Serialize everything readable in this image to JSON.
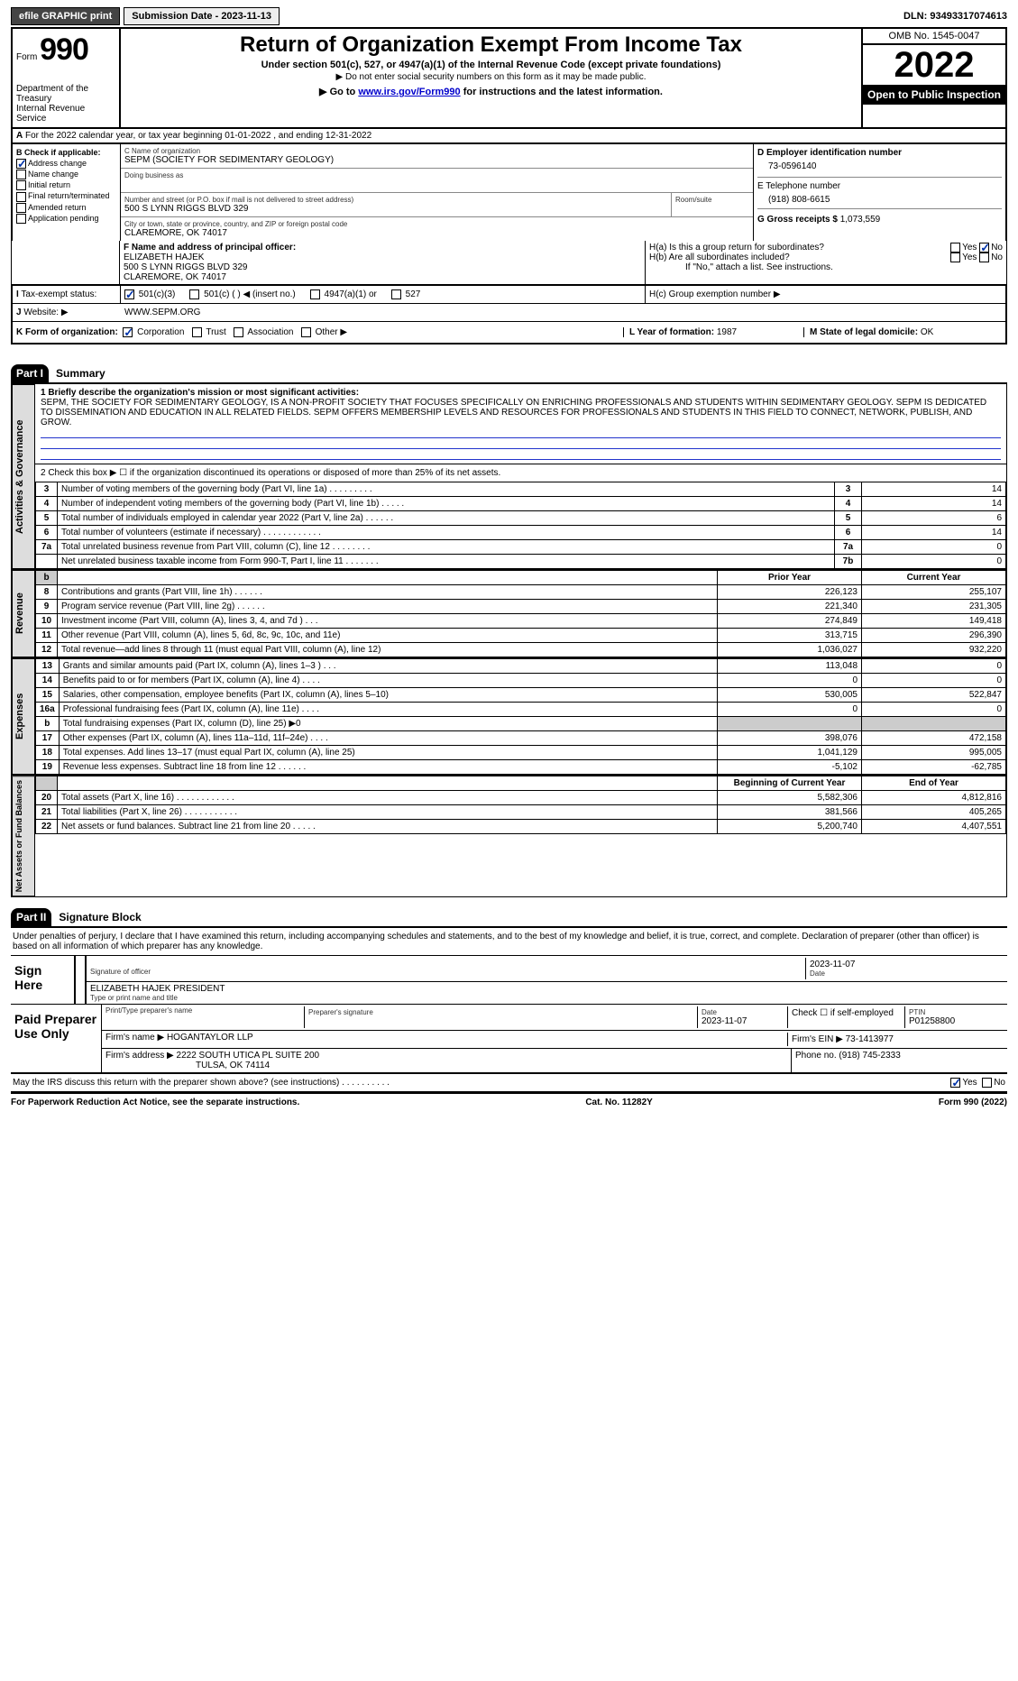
{
  "topbar": {
    "efile": "efile GRAPHIC print",
    "submission": "Submission Date - 2023-11-13",
    "dln": "DLN: 93493317074613"
  },
  "header": {
    "form_word": "Form",
    "form_num": "990",
    "title": "Return of Organization Exempt From Income Tax",
    "subtitle": "Under section 501(c), 527, or 4947(a)(1) of the Internal Revenue Code (except private foundations)",
    "note1": "▶ Do not enter social security numbers on this form as it may be made public.",
    "goto_pre": "▶ Go to ",
    "goto_link": "www.irs.gov/Form990",
    "goto_post": " for instructions and the latest information.",
    "dept": "Department of the Treasury\nInternal Revenue Service",
    "omb": "OMB No. 1545-0047",
    "year": "2022",
    "open": "Open to Public Inspection"
  },
  "lineA": "For the 2022 calendar year, or tax year beginning 01-01-2022    , and ending 12-31-2022",
  "boxB": {
    "hdr": "B Check if applicable:",
    "items": [
      "Address change",
      "Name change",
      "Initial return",
      "Final return/terminated",
      "Amended return",
      "Application pending"
    ],
    "checked_idx": 0
  },
  "boxC": {
    "name_lbl": "C Name of organization",
    "name": "SEPM (SOCIETY FOR SEDIMENTARY GEOLOGY)",
    "dba_lbl": "Doing business as",
    "street_lbl": "Number and street (or P.O. box if mail is not delivered to street address)",
    "street": "500 S LYNN RIGGS BLVD 329",
    "room_lbl": "Room/suite",
    "city_lbl": "City or town, state or province, country, and ZIP or foreign postal code",
    "city": "CLAREMORE, OK  74017"
  },
  "boxD": {
    "lbl": "D Employer identification number",
    "val": "73-0596140"
  },
  "boxE": {
    "lbl": "E Telephone number",
    "val": "(918) 808-6615"
  },
  "boxG": {
    "lbl": "G Gross receipts $",
    "val": "1,073,559"
  },
  "boxF": {
    "lbl": "F  Name and address of principal officer:",
    "name": "ELIZABETH HAJEK",
    "addr1": "500 S LYNN RIGGS BLVD 329",
    "addr2": "CLAREMORE, OK  74017"
  },
  "boxH": {
    "a": "H(a)  Is this a group return for subordinates?",
    "b": "H(b)  Are all subordinates included?",
    "b_note": "If \"No,\" attach a list. See instructions.",
    "c": "H(c)  Group exemption number ▶",
    "yes": "Yes",
    "no": "No"
  },
  "boxI": {
    "lbl": "Tax-exempt status:",
    "opts": [
      "501(c)(3)",
      "501(c) (   ) ◀ (insert no.)",
      "4947(a)(1) or",
      "527"
    ]
  },
  "boxJ": {
    "lbl": "Website: ▶",
    "val": "WWW.SEPM.ORG"
  },
  "boxK": {
    "lbl": "K Form of organization:",
    "opts": [
      "Corporation",
      "Trust",
      "Association",
      "Other ▶"
    ]
  },
  "boxL": {
    "lbl": "L Year of formation:",
    "val": "1987"
  },
  "boxM": {
    "lbl": "M State of legal domicile:",
    "val": "OK"
  },
  "part1": {
    "tab": "Part I",
    "title": "Summary",
    "vtab": "Activities & Governance",
    "line1_lbl": "1  Briefly describe the organization's mission or most significant activities:",
    "mission": "SEPM, THE SOCIETY FOR SEDIMENTARY GEOLOGY, IS A NON-PROFIT SOCIETY THAT FOCUSES SPECIFICALLY ON ENRICHING PROFESSIONALS AND STUDENTS WITHIN SEDIMENTARY GEOLOGY. SEPM IS DEDICATED TO DISSEMINATION AND EDUCATION IN ALL RELATED FIELDS. SEPM OFFERS MEMBERSHIP LEVELS AND RESOURCES FOR PROFESSIONALS AND STUDENTS IN THIS FIELD TO CONNECT, NETWORK, PUBLISH, AND GROW.",
    "line2": "2    Check this box ▶ ☐  if the organization discontinued its operations or disposed of more than 25% of its net assets.",
    "rows_gov": [
      {
        "n": "3",
        "t": "Number of voting members of the governing body (Part VI, line 1a)   .    .    .    .    .    .    .    .    .",
        "k": "3",
        "v": "14"
      },
      {
        "n": "4",
        "t": "Number of independent voting members of the governing body (Part VI, line 1b)    .    .    .    .    .",
        "k": "4",
        "v": "14"
      },
      {
        "n": "5",
        "t": "Total number of individuals employed in calendar year 2022 (Part V, line 2a)    .    .    .    .    .    .",
        "k": "5",
        "v": "6"
      },
      {
        "n": "6",
        "t": "Total number of volunteers (estimate if necessary)   .    .    .    .    .    .    .    .    .    .    .    .",
        "k": "6",
        "v": "14"
      },
      {
        "n": "7a",
        "t": "Total unrelated business revenue from Part VIII, column (C), line 12   .    .    .    .    .    .    .    .",
        "k": "7a",
        "v": "0"
      },
      {
        "n": "",
        "t": "Net unrelated business taxable income from Form 990-T, Part I, line 11    .    .    .    .    .    .    .",
        "k": "7b",
        "v": "0"
      }
    ],
    "rev_vtab": "Revenue",
    "col_hdr_prior": "Prior Year",
    "col_hdr_curr": "Current Year",
    "rows_rev": [
      {
        "n": "8",
        "t": "Contributions and grants (Part VIII, line 1h)   .    .    .    .    .    .",
        "p": "226,123",
        "c": "255,107"
      },
      {
        "n": "9",
        "t": "Program service revenue (Part VIII, line 2g)   .    .    .    .    .    .",
        "p": "221,340",
        "c": "231,305"
      },
      {
        "n": "10",
        "t": "Investment income (Part VIII, column (A), lines 3, 4, and 7d )   .    .    .",
        "p": "274,849",
        "c": "149,418"
      },
      {
        "n": "11",
        "t": "Other revenue (Part VIII, column (A), lines 5, 6d, 8c, 9c, 10c, and 11e)",
        "p": "313,715",
        "c": "296,390"
      },
      {
        "n": "12",
        "t": "Total revenue—add lines 8 through 11 (must equal Part VIII, column (A), line 12)",
        "p": "1,036,027",
        "c": "932,220"
      }
    ],
    "exp_vtab": "Expenses",
    "rows_exp": [
      {
        "n": "13",
        "t": "Grants and similar amounts paid (Part IX, column (A), lines 1–3 )  .    .    .",
        "p": "113,048",
        "c": "0"
      },
      {
        "n": "14",
        "t": "Benefits paid to or for members (Part IX, column (A), line 4)   .    .    .    .",
        "p": "0",
        "c": "0"
      },
      {
        "n": "15",
        "t": "Salaries, other compensation, employee benefits (Part IX, column (A), lines 5–10)",
        "p": "530,005",
        "c": "522,847"
      },
      {
        "n": "16a",
        "t": "Professional fundraising fees (Part IX, column (A), line 11e)   .    .    .    .",
        "p": "0",
        "c": "0"
      },
      {
        "n": "b",
        "t": "Total fundraising expenses (Part IX, column (D), line 25) ▶0",
        "p": "",
        "c": "",
        "shade": true
      },
      {
        "n": "17",
        "t": "Other expenses (Part IX, column (A), lines 11a–11d, 11f–24e)   .    .    .    .",
        "p": "398,076",
        "c": "472,158"
      },
      {
        "n": "18",
        "t": "Total expenses. Add lines 13–17 (must equal Part IX, column (A), line 25)",
        "p": "1,041,129",
        "c": "995,005"
      },
      {
        "n": "19",
        "t": "Revenue less expenses. Subtract line 18 from line 12    .    .    .    .    .    .",
        "p": "-5,102",
        "c": "-62,785"
      }
    ],
    "na_vtab": "Net Assets or Fund Balances",
    "col_hdr_beg": "Beginning of Current Year",
    "col_hdr_end": "End of Year",
    "rows_na": [
      {
        "n": "20",
        "t": "Total assets (Part X, line 16)   .    .    .    .    .    .    .    .    .    .    .    .",
        "p": "5,582,306",
        "c": "4,812,816"
      },
      {
        "n": "21",
        "t": "Total liabilities (Part X, line 26)   .    .    .    .    .    .    .    .    .    .    .",
        "p": "381,566",
        "c": "405,265"
      },
      {
        "n": "22",
        "t": "Net assets or fund balances. Subtract line 21 from line 20   .    .    .    .    .",
        "p": "5,200,740",
        "c": "4,407,551"
      }
    ]
  },
  "part2": {
    "tab": "Part II",
    "title": "Signature Block",
    "decl": "Under penalties of perjury, I declare that I have examined this return, including accompanying schedules and statements, and to the best of my knowledge and belief, it is true, correct, and complete. Declaration of preparer (other than officer) is based on all information of which preparer has any knowledge.",
    "sign_here": "Sign Here",
    "sig_officer_lbl": "Signature of officer",
    "sig_date": "2023-11-07",
    "date_lbl": "Date",
    "officer_name": "ELIZABETH HAJEK  PRESIDENT",
    "officer_name_lbl": "Type or print name and title",
    "paid": "Paid Preparer Use Only",
    "prep_name_lbl": "Print/Type preparer's name",
    "prep_sig_lbl": "Preparer's signature",
    "prep_date": "2023-11-07",
    "self_emp": "Check ☐ if self-employed",
    "ptin_lbl": "PTIN",
    "ptin": "P01258800",
    "firm_name_lbl": "Firm's name    ▶",
    "firm_name": "HOGANTAYLOR LLP",
    "firm_ein_lbl": "Firm's EIN ▶",
    "firm_ein": "73-1413977",
    "firm_addr_lbl": "Firm's address ▶",
    "firm_addr1": "2222 SOUTH UTICA PL SUITE 200",
    "firm_addr2": "TULSA, OK  74114",
    "firm_phone_lbl": "Phone no.",
    "firm_phone": "(918) 745-2333",
    "discuss": "May the IRS discuss this return with the preparer shown above? (see instructions)   .    .    .    .    .    .    .    .    .    .",
    "yes": "Yes",
    "no": "No"
  },
  "footer": {
    "left": "For Paperwork Reduction Act Notice, see the separate instructions.",
    "mid": "Cat. No. 11282Y",
    "right": "Form 990 (2022)"
  }
}
